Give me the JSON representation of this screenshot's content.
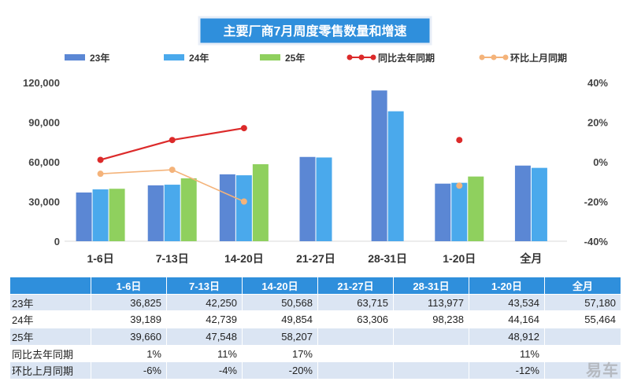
{
  "chart_data": {
    "type": "bar",
    "title": "主要厂商7月周度零售数量和增速",
    "categories": [
      "1-6日",
      "7-13日",
      "14-20日",
      "21-27日",
      "28-31日",
      "1-20日",
      "全月"
    ],
    "ylim": [
      0,
      120000
    ],
    "y_ticks": [
      "0",
      "30,000",
      "60,000",
      "90,000",
      "120,000"
    ],
    "y2lim": [
      -0.4,
      0.4
    ],
    "y2_ticks": [
      "-40%",
      "-20%",
      "0%",
      "20%",
      "40%"
    ],
    "legend_position": "top",
    "grid": false,
    "bar_series": [
      {
        "name": "23年",
        "color": "#5b87d4",
        "values": [
          36825,
          42250,
          50568,
          63715,
          113977,
          43534,
          57180
        ]
      },
      {
        "name": "24年",
        "color": "#4aa9ec",
        "values": [
          39189,
          42739,
          49854,
          63306,
          98238,
          44164,
          55464
        ]
      },
      {
        "name": "25年",
        "color": "#8fd05e",
        "values": [
          39660,
          47548,
          58207,
          null,
          null,
          48912,
          null
        ]
      }
    ],
    "line_series": [
      {
        "name": "同比去年同期",
        "color": "#dc2a2a",
        "values": [
          0.01,
          0.11,
          0.17,
          null,
          null,
          0.11,
          null
        ]
      },
      {
        "name": "环比上月同期",
        "color": "#f4b37a",
        "values": [
          -0.06,
          -0.04,
          -0.2,
          null,
          null,
          -0.12,
          null
        ]
      }
    ]
  },
  "table": {
    "header": [
      "",
      "1-6日",
      "7-13日",
      "14-20日",
      "21-27日",
      "28-31日",
      "1-20日",
      "全月"
    ],
    "rows": [
      [
        "23年",
        "36,825",
        "42,250",
        "50,568",
        "63,715",
        "113,977",
        "43,534",
        "57,180"
      ],
      [
        "24年",
        "39,189",
        "42,739",
        "49,854",
        "63,306",
        "98,238",
        "44,164",
        "55,464"
      ],
      [
        "25年",
        "39,660",
        "47,548",
        "58,207",
        "",
        "",
        "48,912",
        ""
      ],
      [
        "同比去年同期",
        "1%",
        "11%",
        "17%",
        "",
        "",
        "11%",
        ""
      ],
      [
        "环比上月同期",
        "-6%",
        "-4%",
        "-20%",
        "",
        "",
        "-12%",
        ""
      ]
    ]
  },
  "watermark": "易车"
}
